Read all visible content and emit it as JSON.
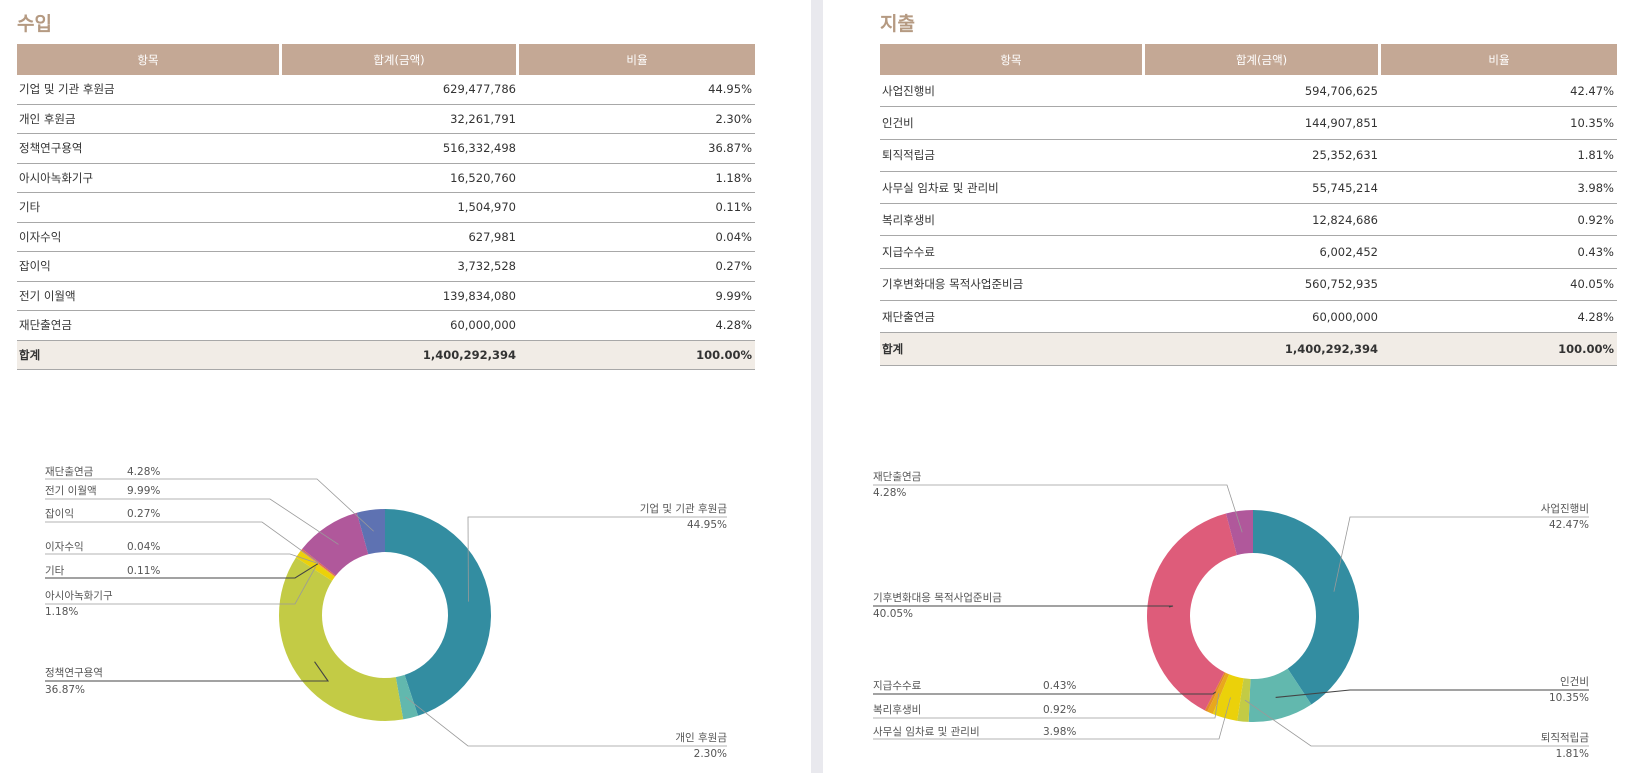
{
  "income": {
    "title": "수입",
    "headers": [
      "항목",
      "합계(금액)",
      "비율"
    ],
    "rows": [
      [
        "기업 및 기관 후원금",
        "629,477,786",
        "44.95%"
      ],
      [
        "개인 후원금",
        "32,261,791",
        "2.30%"
      ],
      [
        "정책연구용역",
        "516,332,498",
        "36.87%"
      ],
      [
        "아시아녹화기구",
        "16,520,760",
        "1.18%"
      ],
      [
        "기타",
        "1,504,970",
        "0.11%"
      ],
      [
        "이자수익",
        "627,981",
        "0.04%"
      ],
      [
        "잡이익",
        "3,732,528",
        "0.27%"
      ],
      [
        "전기 이월액",
        "139,834,080",
        "9.99%"
      ],
      [
        "재단출연금",
        "60,000,000",
        "4.28%"
      ]
    ],
    "total": [
      "합계",
      "1,400,292,394",
      "100.00%"
    ]
  },
  "expense": {
    "title": "지출",
    "headers": [
      "항목",
      "합계(금액)",
      "비율"
    ],
    "rows": [
      [
        "사업진행비",
        "594,706,625",
        "42.47%"
      ],
      [
        "인건비",
        "144,907,851",
        "10.35%"
      ],
      [
        "퇴직적립금",
        "25,352,631",
        "1.81%"
      ],
      [
        "사무실 임차료 및 관리비",
        "55,745,214",
        "3.98%"
      ],
      [
        "복리후생비",
        "12,824,686",
        "0.92%"
      ],
      [
        "지급수수료",
        "6,002,452",
        "0.43%"
      ],
      [
        "기후변화대응 목적사업준비금",
        "560,752,935",
        "40.05%"
      ],
      [
        "재단출연금",
        "60,000,000",
        "4.28%"
      ]
    ],
    "total": [
      "합계",
      "1,400,292,394",
      "100.00%"
    ]
  },
  "chart_data": [
    {
      "type": "pie",
      "title": "수입",
      "categories": [
        "기업 및 기관 후원금",
        "개인 후원금",
        "정책연구용역",
        "아시아녹화기구",
        "기타",
        "이자수익",
        "잡이익",
        "전기 이월액",
        "재단출연금"
      ],
      "values": [
        44.95,
        2.3,
        36.87,
        1.18,
        0.11,
        0.04,
        0.27,
        9.99,
        4.28
      ],
      "labels": [
        "44.95%",
        "2.30%",
        "36.87%",
        "1.18%",
        "0.11%",
        "0.04%",
        "0.27%",
        "9.99%",
        "4.28%"
      ],
      "colors": [
        "#338da1",
        "#62b8ae",
        "#c3cb45",
        "#ebd10a",
        "#e8a81c",
        "#e4882a",
        "#e26b4e",
        "#b0589b",
        "#5e72b2"
      ]
    },
    {
      "type": "pie",
      "title": "지출",
      "categories": [
        "사업진행비",
        "인건비",
        "퇴직적립금",
        "사무실 임차료 및 관리비",
        "복리후생비",
        "지급수수료",
        "기후변화대응 목적사업준비금",
        "재단출연금"
      ],
      "values": [
        42.47,
        10.35,
        1.81,
        3.98,
        0.92,
        0.43,
        40.05,
        4.28
      ],
      "labels": [
        "42.47%",
        "10.35%",
        "1.81%",
        "3.98%",
        "0.92%",
        "0.43%",
        "40.05%",
        "4.28%"
      ],
      "colors": [
        "#338da1",
        "#62b8ae",
        "#c3cb45",
        "#ebd10a",
        "#e8a81c",
        "#e4882a",
        "#de5c7a",
        "#b0589b"
      ]
    }
  ]
}
